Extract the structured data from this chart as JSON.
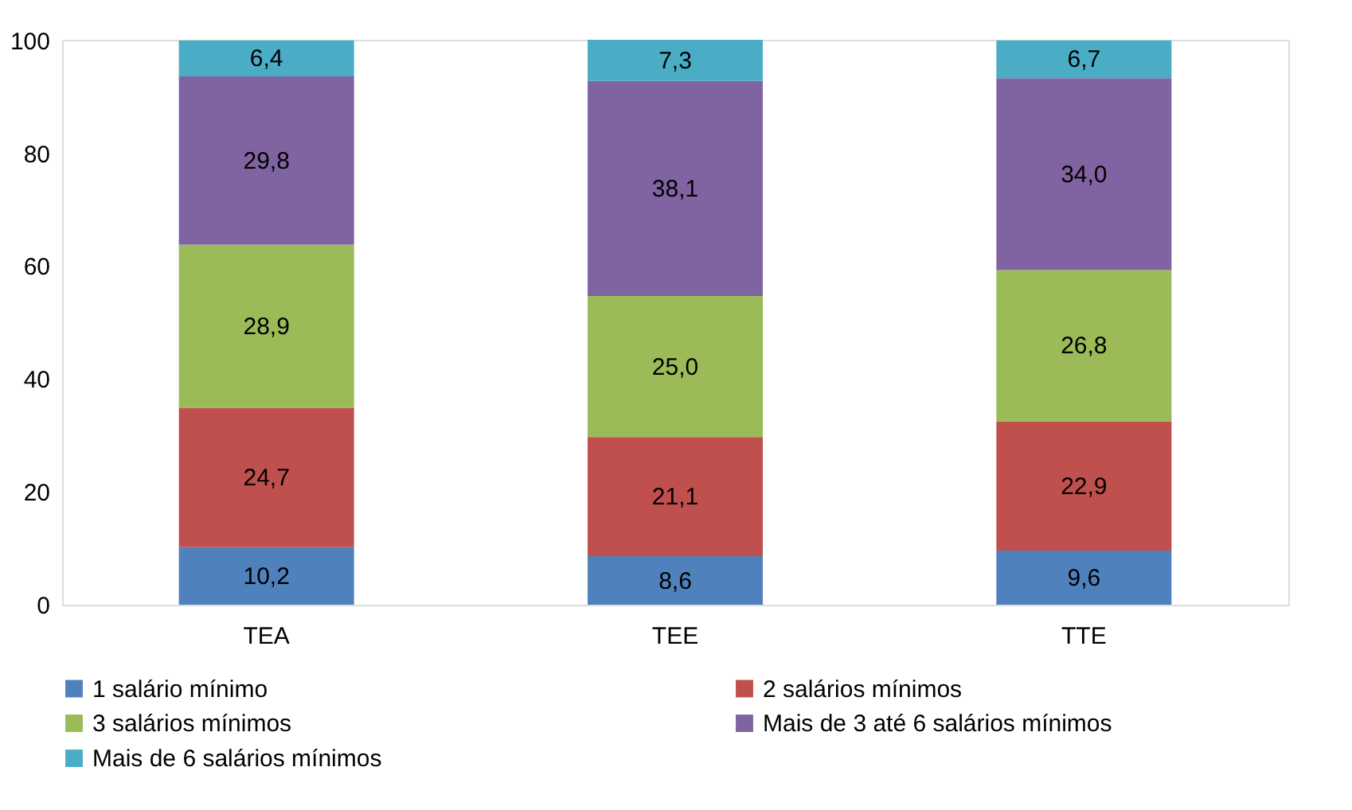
{
  "chart_data": {
    "type": "bar",
    "stacked": true,
    "categories": [
      "TEA",
      "TEE",
      "TTE"
    ],
    "series": [
      {
        "name": "1 salário mínimo",
        "color": "#4f81bd",
        "values": [
          10.2,
          8.6,
          9.6
        ],
        "value_labels": [
          "10,2",
          "8,6",
          "9,6"
        ]
      },
      {
        "name": "2 salários mínimos",
        "color": "#c0504d",
        "values": [
          24.7,
          21.1,
          22.9
        ],
        "value_labels": [
          "24,7",
          "21,1",
          "22,9"
        ]
      },
      {
        "name": "3 salários mínimos",
        "color": "#9bbb59",
        "values": [
          28.9,
          25.0,
          26.8
        ],
        "value_labels": [
          "28,9",
          "25,0",
          "26,8"
        ]
      },
      {
        "name": "Mais de 3 até 6 salários mínimos",
        "color": "#8064a2",
        "values": [
          29.8,
          38.1,
          34.0
        ],
        "value_labels": [
          "29,8",
          "38,1",
          "34,0"
        ]
      },
      {
        "name": "Mais de 6 salários mínimos",
        "color": "#4bacc6",
        "values": [
          6.4,
          7.3,
          6.7
        ],
        "value_labels": [
          "6,4",
          "7,3",
          "6,7"
        ]
      }
    ],
    "ylim": [
      0,
      100.1
    ],
    "yticks": [
      0,
      20,
      40,
      60,
      80,
      100
    ],
    "grid": false,
    "legend": "bottom"
  }
}
